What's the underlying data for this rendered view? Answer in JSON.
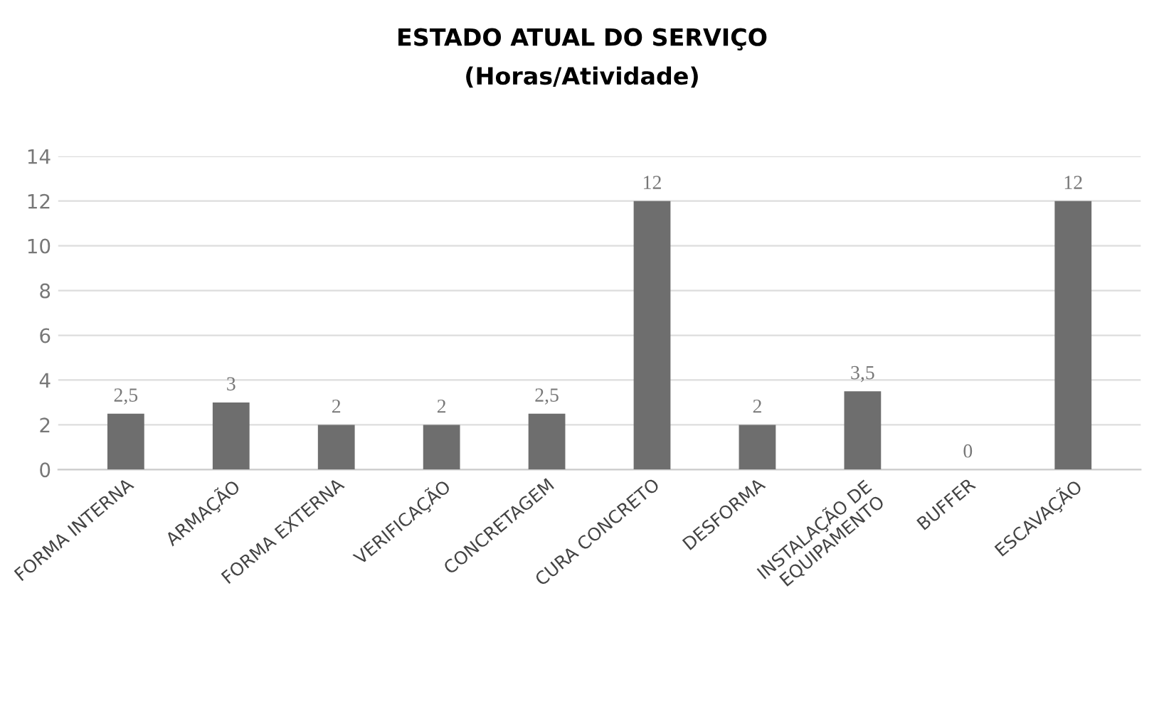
{
  "chart_data": {
    "type": "bar",
    "title": "ESTADO ATUAL DO SERVIÇO",
    "subtitle": "(Horas/Atividade)",
    "categories": [
      "FORMA INTERNA",
      "ARMAÇÃO",
      "FORMA EXTERNA",
      "VERIFICAÇÃO",
      "CONCRETAGEM",
      "CURA CONCRETO",
      "DESFORMA",
      "INSTALAÇÃO DE\nEQUIPAMENTO",
      "BUFFER",
      "ESCAVAÇÃO"
    ],
    "values": [
      2.5,
      3,
      2,
      2,
      2.5,
      12,
      2,
      3.5,
      0,
      12
    ],
    "value_labels": [
      "2,5",
      "3",
      "2",
      "2",
      "2,5",
      "12",
      "2",
      "3,5",
      "0",
      "12"
    ],
    "color": "#6e6e6e",
    "ylim": [
      0,
      14
    ],
    "yticks": [
      0,
      2,
      4,
      6,
      8,
      10,
      12,
      14
    ],
    "grid": "y"
  }
}
